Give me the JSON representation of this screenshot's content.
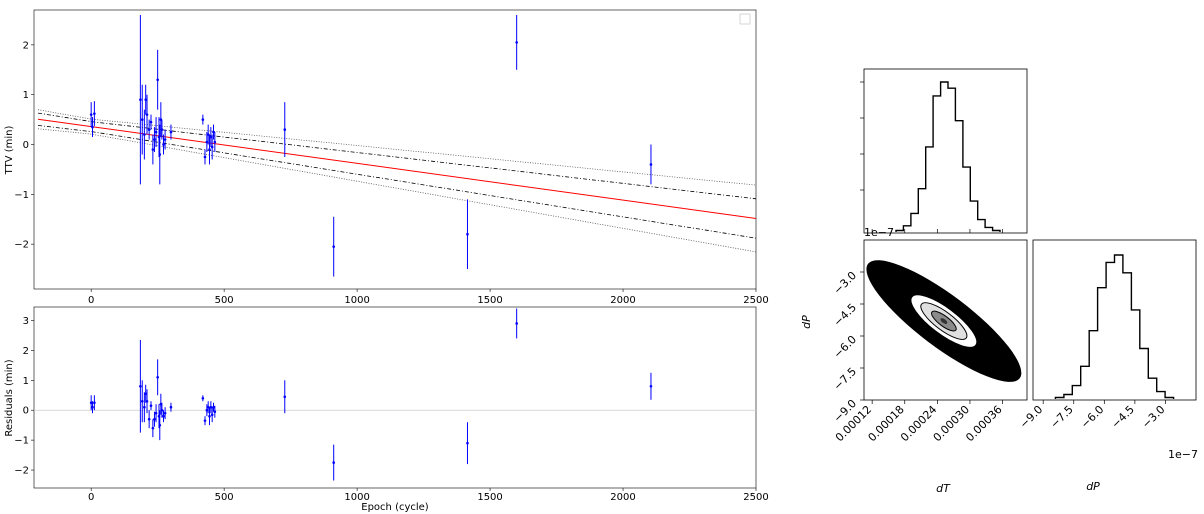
{
  "chart_data": [
    {
      "type": "scatter",
      "panel": "ttv",
      "ylabel": "TTV (min)",
      "xlabel": "",
      "xlim": [
        -215,
        2500
      ],
      "ylim": [
        -2.9,
        2.7
      ],
      "xticks": [
        "0",
        "500",
        "1000",
        "1500",
        "2000",
        "2500"
      ],
      "yticks": [
        "2",
        "1",
        "0",
        "−1",
        "−2"
      ],
      "ytick_values": [
        2,
        1,
        0,
        -1,
        -2
      ],
      "xtick_values": [
        0,
        500,
        1000,
        1500,
        2000,
        2500
      ],
      "legend": "upper right, empty box",
      "colors": {
        "points": "#0000ff",
        "fit": "#ff0000",
        "bands": "#000000"
      },
      "fit": {
        "slope": -0.000738,
        "intercept": 0.36
      },
      "bands": {
        "inner_offset": 0.1,
        "inner_growth": 0.000118,
        "outer_offset": 0.15,
        "outer_growth": 0.000208
      },
      "points": [
        {
          "x": 0,
          "y": 0.6,
          "err": 0.25
        },
        {
          "x": 5,
          "y": 0.35,
          "err": 0.2
        },
        {
          "x": 12,
          "y": 0.62,
          "err": 0.25
        },
        {
          "x": 185,
          "y": 0.9,
          "err": 1.7
        },
        {
          "x": 192,
          "y": 0.5,
          "err": 0.7
        },
        {
          "x": 200,
          "y": 0.2,
          "err": 0.5
        },
        {
          "x": 205,
          "y": 0.9,
          "err": 0.3
        },
        {
          "x": 210,
          "y": 0.6,
          "err": 0.4
        },
        {
          "x": 218,
          "y": 0.3,
          "err": 0.2
        },
        {
          "x": 225,
          "y": 0.45,
          "err": 0.15
        },
        {
          "x": 232,
          "y": -0.1,
          "err": 0.3
        },
        {
          "x": 238,
          "y": 0.1,
          "err": 0.25
        },
        {
          "x": 244,
          "y": 0.25,
          "err": 0.3
        },
        {
          "x": 250,
          "y": 1.3,
          "err": 0.6
        },
        {
          "x": 255,
          "y": 0.15,
          "err": 0.4
        },
        {
          "x": 258,
          "y": -0.2,
          "err": 0.6
        },
        {
          "x": 262,
          "y": 0.5,
          "err": 0.35
        },
        {
          "x": 266,
          "y": 0.3,
          "err": 0.2
        },
        {
          "x": 272,
          "y": 0.0,
          "err": 0.2
        },
        {
          "x": 278,
          "y": 0.1,
          "err": 0.2
        },
        {
          "x": 300,
          "y": 0.25,
          "err": 0.15
        },
        {
          "x": 420,
          "y": 0.5,
          "err": 0.1
        },
        {
          "x": 428,
          "y": -0.25,
          "err": 0.15
        },
        {
          "x": 435,
          "y": 0.05,
          "err": 0.2
        },
        {
          "x": 440,
          "y": 0.2,
          "err": 0.2
        },
        {
          "x": 445,
          "y": -0.1,
          "err": 0.3
        },
        {
          "x": 450,
          "y": 0.15,
          "err": 0.2
        },
        {
          "x": 455,
          "y": -0.05,
          "err": 0.25
        },
        {
          "x": 460,
          "y": 0.25,
          "err": 0.15
        },
        {
          "x": 465,
          "y": 0.05,
          "err": 0.2
        },
        {
          "x": 728,
          "y": 0.3,
          "err": 0.55
        },
        {
          "x": 912,
          "y": -2.05,
          "err": 0.6
        },
        {
          "x": 1415,
          "y": -1.8,
          "err": 0.7
        },
        {
          "x": 1600,
          "y": 2.05,
          "err": 0.55
        },
        {
          "x": 2105,
          "y": -0.4,
          "err": 0.4
        }
      ]
    },
    {
      "type": "scatter",
      "panel": "residuals",
      "ylabel": "Residuals (min)",
      "xlabel": "Epoch (cycle)",
      "xlim": [
        -215,
        2500
      ],
      "ylim": [
        -2.6,
        3.45
      ],
      "xticks": [
        "0",
        "500",
        "1000",
        "1500",
        "2000",
        "2500"
      ],
      "xtick_values": [
        0,
        500,
        1000,
        1500,
        2000,
        2500
      ],
      "yticks": [
        "3",
        "2",
        "1",
        "0",
        "−1",
        "−2"
      ],
      "ytick_values": [
        3,
        2,
        1,
        0,
        -1,
        -2
      ],
      "colors": {
        "points": "#0000ff",
        "zero_line": "#cccccc"
      },
      "points": [
        {
          "x": 0,
          "y": 0.25,
          "err": 0.25
        },
        {
          "x": 5,
          "y": 0.1,
          "err": 0.2
        },
        {
          "x": 12,
          "y": 0.25,
          "err": 0.25
        },
        {
          "x": 185,
          "y": 0.8,
          "err": 1.55
        },
        {
          "x": 192,
          "y": 0.3,
          "err": 0.7
        },
        {
          "x": 200,
          "y": 0.1,
          "err": 0.5
        },
        {
          "x": 205,
          "y": 0.55,
          "err": 0.3
        },
        {
          "x": 210,
          "y": 0.3,
          "err": 0.4
        },
        {
          "x": 218,
          "y": -0.3,
          "err": 0.3
        },
        {
          "x": 225,
          "y": 0.15,
          "err": 0.15
        },
        {
          "x": 232,
          "y": -0.6,
          "err": 0.3
        },
        {
          "x": 238,
          "y": -0.3,
          "err": 0.25
        },
        {
          "x": 244,
          "y": -0.1,
          "err": 0.3
        },
        {
          "x": 250,
          "y": 1.1,
          "err": 0.6
        },
        {
          "x": 255,
          "y": -0.2,
          "err": 0.4
        },
        {
          "x": 258,
          "y": -0.5,
          "err": 0.5
        },
        {
          "x": 262,
          "y": 0.2,
          "err": 0.35
        },
        {
          "x": 266,
          "y": 0.0,
          "err": 0.25
        },
        {
          "x": 272,
          "y": -0.2,
          "err": 0.2
        },
        {
          "x": 278,
          "y": -0.1,
          "err": 0.2
        },
        {
          "x": 300,
          "y": 0.1,
          "err": 0.15
        },
        {
          "x": 420,
          "y": 0.4,
          "err": 0.1
        },
        {
          "x": 428,
          "y": -0.35,
          "err": 0.15
        },
        {
          "x": 435,
          "y": 0.0,
          "err": 0.2
        },
        {
          "x": 440,
          "y": 0.1,
          "err": 0.2
        },
        {
          "x": 445,
          "y": -0.2,
          "err": 0.3
        },
        {
          "x": 450,
          "y": 0.1,
          "err": 0.2
        },
        {
          "x": 455,
          "y": -0.15,
          "err": 0.25
        },
        {
          "x": 460,
          "y": 0.1,
          "err": 0.15
        },
        {
          "x": 465,
          "y": -0.05,
          "err": 0.2
        },
        {
          "x": 728,
          "y": 0.45,
          "err": 0.55
        },
        {
          "x": 912,
          "y": -1.75,
          "err": 0.6
        },
        {
          "x": 1415,
          "y": -1.1,
          "err": 0.7
        },
        {
          "x": 1600,
          "y": 2.9,
          "err": 0.5
        },
        {
          "x": 2105,
          "y": 0.8,
          "err": 0.45
        }
      ]
    },
    {
      "type": "histogram",
      "panel": "corner-dT",
      "color": "#000000",
      "values": [
        1,
        4,
        12,
        28,
        55,
        88,
        97,
        93,
        72,
        42,
        20,
        8,
        3,
        1
      ]
    },
    {
      "type": "scatter",
      "panel": "corner-2d",
      "xlabel": "dT",
      "ylabel": "dP",
      "xlim": [
        0.000105,
        0.000405
      ],
      "ylim": [
        -9.0,
        -1.5
      ],
      "exponent_label": "1e−7",
      "xticks": [
        "0.00012",
        "0.00018",
        "0.00024",
        "0.00030",
        "0.00036"
      ],
      "xtick_values": [
        0.00012,
        0.00018,
        0.00024,
        0.0003,
        0.00036
      ],
      "yticks": [
        "−3.0",
        "−4.5",
        "−6.0",
        "−7.5",
        "−9.0"
      ],
      "ytick_values": [
        -3.0,
        -4.5,
        -6.0,
        -7.5,
        -9.0
      ],
      "center": {
        "dT": 0.000252,
        "dP": -5.3
      },
      "color": "#000000",
      "contours": "1σ, 2σ, 3σ"
    },
    {
      "type": "histogram",
      "panel": "corner-dP",
      "xlabel": "dP",
      "exponent_label": "1e−7",
      "xlim": [
        -9.5,
        -1.5
      ],
      "xticks": [
        "−9.0",
        "−7.5",
        "−6.0",
        "−4.5",
        "−3.0"
      ],
      "xtick_values": [
        -9.0,
        -7.5,
        -6.0,
        -4.5,
        -3.0
      ],
      "color": "#000000",
      "values": [
        1,
        3,
        9,
        22,
        46,
        75,
        92,
        97,
        85,
        60,
        34,
        14,
        5,
        1
      ]
    }
  ]
}
